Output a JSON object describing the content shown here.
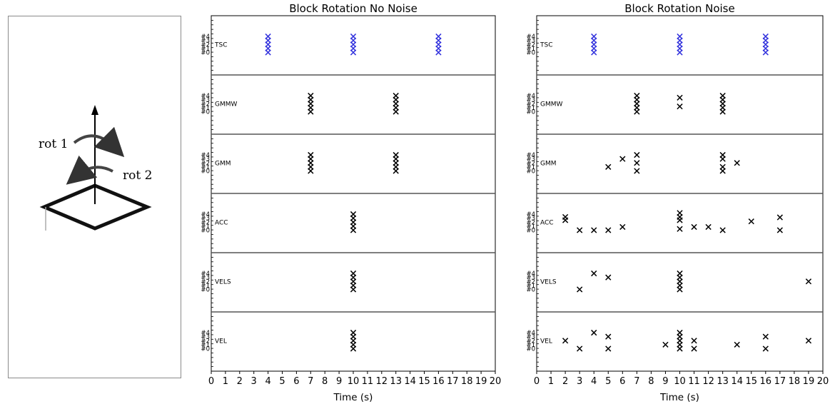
{
  "diagram": {
    "labels": {
      "rot1": "rot 1",
      "rot2": "rot 2"
    }
  },
  "chart_data": [
    {
      "type": "scatter",
      "title": "Block Rotation No Noise",
      "xlabel": "Time (s)",
      "xlim": [
        0,
        20
      ],
      "xticks": [
        0,
        1,
        2,
        3,
        4,
        5,
        6,
        7,
        8,
        9,
        10,
        11,
        12,
        13,
        14,
        15,
        16,
        17,
        18,
        19,
        20
      ],
      "sub_ytick_labels": [
        "#0",
        "#1",
        "#2",
        "#3",
        "#4"
      ],
      "series": [
        {
          "name": "TSC",
          "color": "#3333dd",
          "points": [
            [
              4,
              0
            ],
            [
              4,
              1
            ],
            [
              4,
              2
            ],
            [
              4,
              3
            ],
            [
              4,
              4
            ],
            [
              10,
              0
            ],
            [
              10,
              1
            ],
            [
              10,
              2
            ],
            [
              10,
              3
            ],
            [
              10,
              4
            ],
            [
              16,
              0
            ],
            [
              16,
              1
            ],
            [
              16,
              2
            ],
            [
              16,
              3
            ],
            [
              16,
              4
            ]
          ]
        },
        {
          "name": "GMMW",
          "color": "#000000",
          "points": [
            [
              7,
              0
            ],
            [
              7,
              1
            ],
            [
              7,
              2
            ],
            [
              7,
              3
            ],
            [
              7,
              4
            ],
            [
              13,
              0
            ],
            [
              13,
              1
            ],
            [
              13,
              2
            ],
            [
              13,
              3
            ],
            [
              13,
              4
            ]
          ]
        },
        {
          "name": "GMM",
          "color": "#000000",
          "points": [
            [
              7,
              0
            ],
            [
              7,
              1
            ],
            [
              7,
              2
            ],
            [
              7,
              3
            ],
            [
              7,
              4
            ],
            [
              13,
              0
            ],
            [
              13,
              1
            ],
            [
              13,
              2
            ],
            [
              13,
              3
            ],
            [
              13,
              4
            ]
          ]
        },
        {
          "name": "ACC",
          "color": "#000000",
          "points": [
            [
              10,
              0
            ],
            [
              10,
              1
            ],
            [
              10,
              2
            ],
            [
              10,
              3
            ],
            [
              10,
              4
            ]
          ]
        },
        {
          "name": "VELS",
          "color": "#000000",
          "points": [
            [
              10,
              0
            ],
            [
              10,
              1
            ],
            [
              10,
              2
            ],
            [
              10,
              3
            ],
            [
              10,
              4
            ]
          ]
        },
        {
          "name": "VEL",
          "color": "#000000",
          "points": [
            [
              10,
              0
            ],
            [
              10,
              1
            ],
            [
              10,
              2
            ],
            [
              10,
              3
            ],
            [
              10,
              4
            ]
          ]
        }
      ]
    },
    {
      "type": "scatter",
      "title": "Block Rotation Noise",
      "xlabel": "Time (s)",
      "xlim": [
        0,
        20
      ],
      "xticks": [
        0,
        1,
        2,
        3,
        4,
        5,
        6,
        7,
        8,
        9,
        10,
        11,
        12,
        13,
        14,
        15,
        16,
        17,
        18,
        19,
        20
      ],
      "sub_ytick_labels": [
        "#0",
        "#1",
        "#2",
        "#3",
        "#4"
      ],
      "series": [
        {
          "name": "TSC",
          "color": "#3333dd",
          "points": [
            [
              4,
              0
            ],
            [
              4,
              1
            ],
            [
              4,
              2
            ],
            [
              4,
              3
            ],
            [
              4,
              4
            ],
            [
              10,
              0
            ],
            [
              10,
              1
            ],
            [
              10,
              2
            ],
            [
              10,
              3
            ],
            [
              10,
              4
            ],
            [
              16,
              0
            ],
            [
              16,
              1
            ],
            [
              16,
              2
            ],
            [
              16,
              3
            ],
            [
              16,
              4
            ]
          ]
        },
        {
          "name": "GMMW",
          "color": "#000000",
          "points": [
            [
              7,
              0
            ],
            [
              7,
              1
            ],
            [
              7,
              2
            ],
            [
              7,
              3
            ],
            [
              7,
              4
            ],
            [
              10,
              1.3
            ],
            [
              10,
              3.5
            ],
            [
              13,
              0
            ],
            [
              13,
              1
            ],
            [
              13,
              2
            ],
            [
              13,
              3
            ],
            [
              13,
              4
            ]
          ]
        },
        {
          "name": "GMM",
          "color": "#000000",
          "points": [
            [
              5,
              1
            ],
            [
              6,
              3
            ],
            [
              7,
              0
            ],
            [
              7,
              2
            ],
            [
              7,
              4
            ],
            [
              13,
              0
            ],
            [
              13,
              1
            ],
            [
              13,
              3
            ],
            [
              13,
              4
            ],
            [
              14,
              2
            ]
          ]
        },
        {
          "name": "ACC",
          "color": "#000000",
          "points": [
            [
              2,
              2.5
            ],
            [
              2,
              3.3
            ],
            [
              3,
              0
            ],
            [
              4,
              0
            ],
            [
              5,
              0
            ],
            [
              6,
              0.8
            ],
            [
              10,
              0.3
            ],
            [
              10,
              2.5
            ],
            [
              10,
              3.3
            ],
            [
              10,
              4.3
            ],
            [
              11,
              0.8
            ],
            [
              12,
              0.8
            ],
            [
              13,
              0
            ],
            [
              15,
              2.2
            ],
            [
              17,
              0
            ],
            [
              17,
              3.2
            ]
          ]
        },
        {
          "name": "VELS",
          "color": "#000000",
          "points": [
            [
              3,
              0
            ],
            [
              4,
              4
            ],
            [
              5,
              3
            ],
            [
              10,
              0
            ],
            [
              10,
              1
            ],
            [
              10,
              2
            ],
            [
              10,
              3
            ],
            [
              10,
              4
            ],
            [
              19,
              2
            ]
          ]
        },
        {
          "name": "VEL",
          "color": "#000000",
          "points": [
            [
              2,
              2
            ],
            [
              3,
              0
            ],
            [
              4,
              4
            ],
            [
              5,
              0
            ],
            [
              5,
              3
            ],
            [
              9,
              1
            ],
            [
              10,
              0
            ],
            [
              10,
              1
            ],
            [
              10,
              2
            ],
            [
              10,
              3
            ],
            [
              10,
              4
            ],
            [
              11,
              0
            ],
            [
              11,
              2
            ],
            [
              14,
              1
            ],
            [
              16,
              0
            ],
            [
              16,
              3
            ],
            [
              19,
              2
            ]
          ]
        }
      ]
    }
  ]
}
